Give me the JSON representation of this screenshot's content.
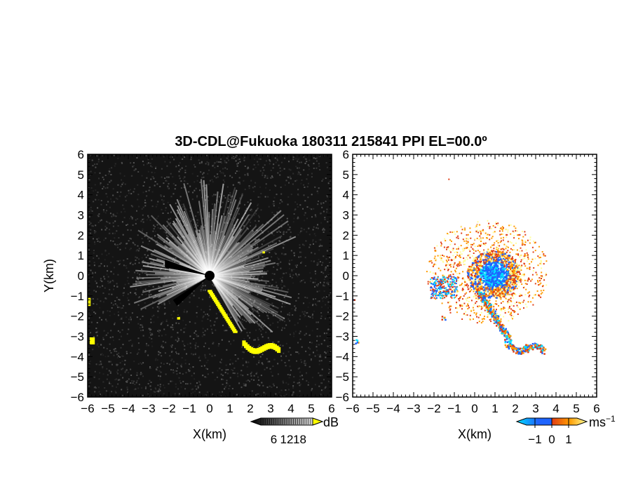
{
  "title": "3D-CDL@Fukuoka 180311 215841 PPI EL=00.0º",
  "chart_data": [
    {
      "type": "heatmap",
      "panel": "left",
      "variable_unit": "dB",
      "xlabel": "X(km)",
      "ylabel": "Y(km)",
      "xlim": [
        -6,
        6
      ],
      "ylim": [
        -6,
        6
      ],
      "x_ticks": [
        "−6",
        "−5",
        "−4",
        "−3",
        "−2",
        "−1",
        "0",
        "1",
        "2",
        "3",
        "4",
        "5",
        "6"
      ],
      "y_ticks": [
        "6",
        "5",
        "4",
        "3",
        "2",
        "1",
        "0",
        "−1",
        "−2",
        "−3",
        "−4",
        "−5",
        "−6"
      ],
      "colorbar": {
        "unit": "dB",
        "range": [
          0,
          24
        ],
        "tick_labels": [
          "6",
          "12",
          "18"
        ],
        "colors": [
          "#000000",
          "#ffffff"
        ],
        "overflow_color": "#ffff00"
      },
      "colors": {
        "background": "#141414",
        "echo": "#ffffff",
        "saturation": "#ffff00"
      }
    },
    {
      "type": "heatmap",
      "panel": "right",
      "variable_unit": "ms⁻¹",
      "xlabel": "X(km)",
      "xlim": [
        -6,
        6
      ],
      "ylim": [
        -6,
        6
      ],
      "x_ticks": [
        "−6",
        "−5",
        "−4",
        "−3",
        "−2",
        "−1",
        "0",
        "1",
        "2",
        "3",
        "4",
        "5",
        "6"
      ],
      "y_ticks": [
        "6",
        "5",
        "4",
        "3",
        "2",
        "1",
        "0",
        "−1",
        "−2",
        "−3",
        "−4",
        "−5",
        "−6"
      ],
      "colorbar": {
        "unit": "ms",
        "unit_exp": "−1",
        "range": [
          -1.5,
          1.5
        ],
        "tick_labels": [
          "−1",
          "0",
          "1"
        ],
        "colors": [
          "#00e0ff",
          "#1e64ff",
          "#e03c14",
          "#ff9b00",
          "#ffff9b"
        ]
      }
    }
  ]
}
